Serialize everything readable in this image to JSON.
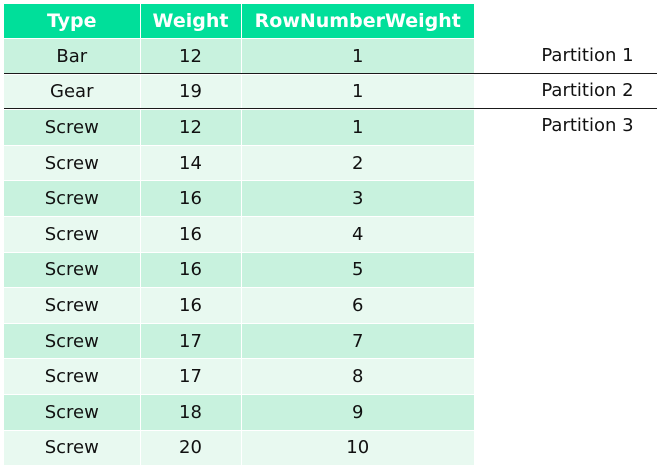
{
  "table": {
    "headers": [
      "Type",
      "Weight",
      "RowNumberWeight"
    ],
    "rows": [
      [
        "Bar",
        "12",
        "1"
      ],
      [
        "Gear",
        "19",
        "1"
      ],
      [
        "Screw",
        "12",
        "1"
      ],
      [
        "Screw",
        "14",
        "2"
      ],
      [
        "Screw",
        "16",
        "3"
      ],
      [
        "Screw",
        "16",
        "4"
      ],
      [
        "Screw",
        "16",
        "5"
      ],
      [
        "Screw",
        "16",
        "6"
      ],
      [
        "Screw",
        "17",
        "7"
      ],
      [
        "Screw",
        "17",
        "8"
      ],
      [
        "Screw",
        "18",
        "9"
      ],
      [
        "Screw",
        "20",
        "10"
      ]
    ]
  },
  "partitions": [
    "Partition 1",
    "Partition 2",
    "Partition 3"
  ],
  "colors": {
    "header": "#00df9a",
    "row_band_dark": "#c8f2de",
    "row_band_light": "#e8f9f0",
    "divider": "#1a1a1a"
  }
}
